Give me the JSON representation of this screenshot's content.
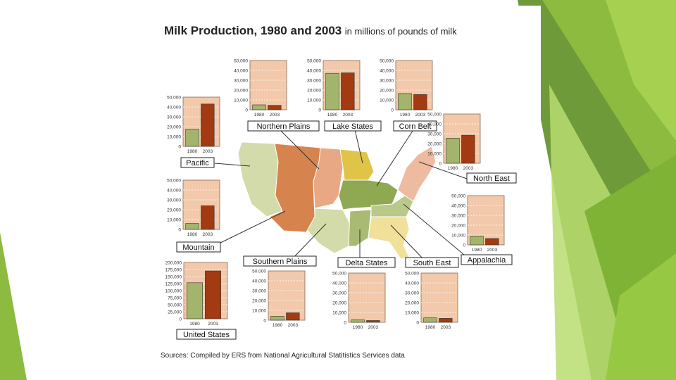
{
  "title": "Milk Production, 1980 and 2003",
  "subtitle": "in millions of pounds of milk",
  "source": "Sources: Compiled by ERS from National Agricultural Statitistics Services data",
  "colors": {
    "bar_1980": "#a3b46c",
    "bar_2003": "#a23a12",
    "panel_bg": "#f2c9aa",
    "grid": "#ffffff"
  },
  "chart_data": [
    {
      "type": "bar",
      "region": "Northern Plains",
      "categories": [
        "1980",
        "2003"
      ],
      "values": [
        5000,
        4500
      ],
      "ylim": [
        0,
        50000
      ],
      "yticks": [
        "50,000",
        "40,000",
        "30,000",
        "20,000",
        "10,000",
        "0"
      ],
      "ylabel": "",
      "xlabel": ""
    },
    {
      "type": "bar",
      "region": "Lake States",
      "categories": [
        "1980",
        "2003"
      ],
      "values": [
        37000,
        37500
      ],
      "ylim": [
        0,
        50000
      ],
      "yticks": [
        "50,000",
        "40,000",
        "30,000",
        "20,000",
        "10,000",
        "0"
      ],
      "ylabel": "",
      "xlabel": ""
    },
    {
      "type": "bar",
      "region": "Corn Belt",
      "categories": [
        "1980",
        "2003"
      ],
      "values": [
        16500,
        15500
      ],
      "ylim": [
        0,
        50000
      ],
      "yticks": [
        "50,000",
        "40,000",
        "30,000",
        "20,000",
        "10,000",
        "0"
      ],
      "ylabel": "",
      "xlabel": ""
    },
    {
      "type": "bar",
      "region": "Pacific",
      "categories": [
        "1980",
        "2003"
      ],
      "values": [
        17500,
        43000
      ],
      "ylim": [
        0,
        50000
      ],
      "yticks": [
        "50,000",
        "40,000",
        "30,000",
        "20,000",
        "10,000",
        "0"
      ],
      "ylabel": "",
      "xlabel": ""
    },
    {
      "type": "bar",
      "region": "North East",
      "categories": [
        "1980",
        "2003"
      ],
      "values": [
        25500,
        28500
      ],
      "ylim": [
        0,
        50000
      ],
      "yticks": [
        "50,000",
        "40,000",
        "30,000",
        "20,000",
        "10,000",
        "0"
      ],
      "ylabel": "",
      "xlabel": ""
    },
    {
      "type": "bar",
      "region": "Mountain",
      "categories": [
        "1980",
        "2003"
      ],
      "values": [
        6000,
        24000
      ],
      "ylim": [
        0,
        50000
      ],
      "yticks": [
        "50,000",
        "40,000",
        "30,000",
        "20,000",
        "10,000",
        "0"
      ],
      "ylabel": "",
      "xlabel": ""
    },
    {
      "type": "bar",
      "region": "Appalachia",
      "categories": [
        "1980",
        "2003"
      ],
      "values": [
        9000,
        6500
      ],
      "ylim": [
        0,
        50000
      ],
      "yticks": [
        "50,000",
        "40,000",
        "30,000",
        "20,000",
        "10,000",
        "0"
      ],
      "ylabel": "",
      "xlabel": ""
    },
    {
      "type": "bar",
      "region": "United States",
      "categories": [
        "1980",
        "2003"
      ],
      "values": [
        128000,
        170000
      ],
      "ylim": [
        0,
        200000
      ],
      "yticks": [
        "200,000",
        "175,000",
        "150,000",
        "125,000",
        "100,000",
        "75,000",
        "50,000",
        "25,000",
        "0"
      ],
      "ylabel": "",
      "xlabel": ""
    },
    {
      "type": "bar",
      "region": "Southern Plains",
      "categories": [
        "1980",
        "2003"
      ],
      "values": [
        4000,
        7500
      ],
      "ylim": [
        0,
        50000
      ],
      "yticks": [
        "50,000",
        "40,000",
        "30,000",
        "20,000",
        "10,000",
        "0"
      ],
      "ylabel": "",
      "xlabel": ""
    },
    {
      "type": "bar",
      "region": "Delta States",
      "categories": [
        "1980",
        "2003"
      ],
      "values": [
        2500,
        1800
      ],
      "ylim": [
        0,
        50000
      ],
      "yticks": [
        "50,000",
        "40,000",
        "30,000",
        "20,000",
        "10,000",
        "0"
      ],
      "ylabel": "",
      "xlabel": ""
    },
    {
      "type": "bar",
      "region": "South East",
      "categories": [
        "1980",
        "2003"
      ],
      "values": [
        4500,
        4000
      ],
      "ylim": [
        0,
        50000
      ],
      "yticks": [
        "50,000",
        "40,000",
        "30,000",
        "20,000",
        "10,000",
        "0"
      ],
      "ylabel": "",
      "xlabel": ""
    }
  ]
}
